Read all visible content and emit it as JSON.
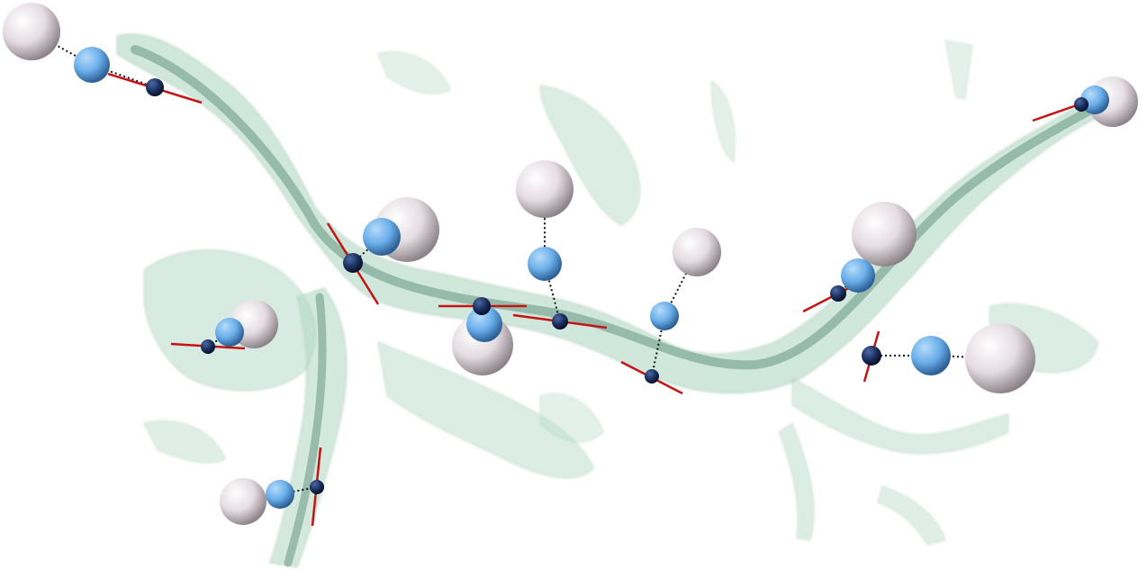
{
  "scene": {
    "colors": {
      "background": "#ffffff",
      "vessel": "#6fb894",
      "vessel_dark": "#3f7f60",
      "spine": "#c41414",
      "base_node": "#152a5a",
      "mid_sphere": "#6fb3ee",
      "head_sphere": "#ded6db",
      "link": "#111111"
    },
    "spine_groups": [
      {
        "name": "spine-1"
      },
      {
        "name": "spine-2"
      },
      {
        "name": "spine-3"
      },
      {
        "name": "spine-4"
      },
      {
        "name": "spine-5"
      },
      {
        "name": "spine-6"
      },
      {
        "name": "spine-7"
      },
      {
        "name": "spine-8"
      },
      {
        "name": "spine-9"
      },
      {
        "name": "spine-10"
      },
      {
        "name": "spine-11"
      },
      {
        "name": "spine-12"
      }
    ]
  }
}
